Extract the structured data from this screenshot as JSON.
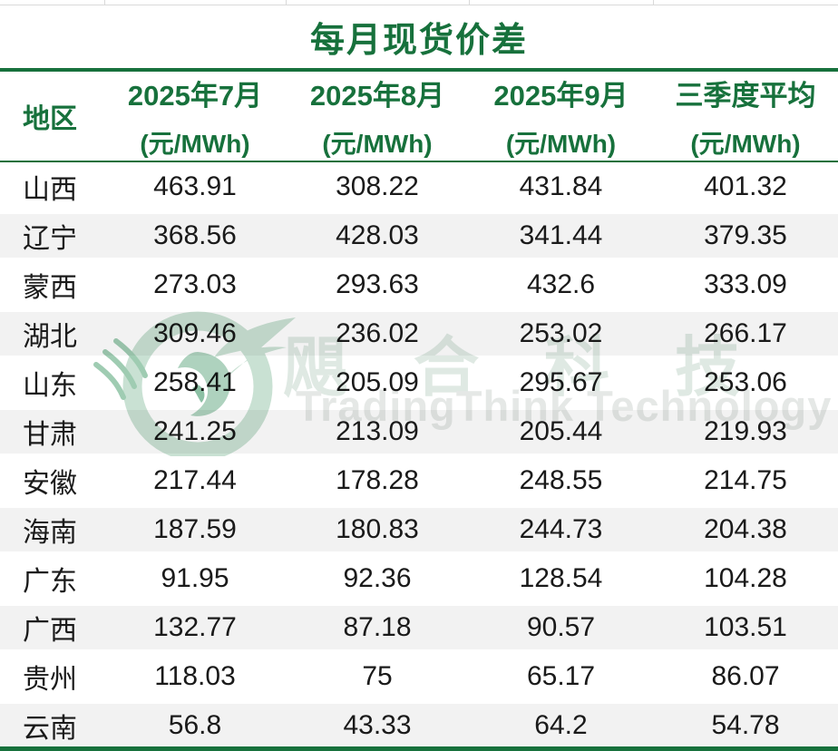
{
  "title": "每月现货价差",
  "table": {
    "region_header": "地区",
    "columns": [
      {
        "label": "2025年7月",
        "unit": "(元/MWh)"
      },
      {
        "label": "2025年8月",
        "unit": "(元/MWh)"
      },
      {
        "label": "2025年9月",
        "unit": "(元/MWh)"
      },
      {
        "label": "三季度平均",
        "unit": "(元/MWh)"
      }
    ],
    "rows": [
      {
        "region": "山西",
        "values": [
          "463.91",
          "308.22",
          "431.84",
          "401.32"
        ]
      },
      {
        "region": "辽宁",
        "values": [
          "368.56",
          "428.03",
          "341.44",
          "379.35"
        ]
      },
      {
        "region": "蒙西",
        "values": [
          "273.03",
          "293.63",
          "432.6",
          "333.09"
        ]
      },
      {
        "region": "湖北",
        "values": [
          "309.46",
          "236.02",
          "253.02",
          "266.17"
        ]
      },
      {
        "region": "山东",
        "values": [
          "258.41",
          "205.09",
          "295.67",
          "253.06"
        ]
      },
      {
        "region": "甘肃",
        "values": [
          "241.25",
          "213.09",
          "205.44",
          "219.93"
        ]
      },
      {
        "region": "安徽",
        "values": [
          "217.44",
          "178.28",
          "248.55",
          "214.75"
        ]
      },
      {
        "region": "海南",
        "values": [
          "187.59",
          "180.83",
          "244.73",
          "204.38"
        ]
      },
      {
        "region": "广东",
        "values": [
          "91.95",
          "92.36",
          "128.54",
          "104.28"
        ]
      },
      {
        "region": "广西",
        "values": [
          "132.77",
          "87.18",
          "90.57",
          "103.51"
        ]
      },
      {
        "region": "贵州",
        "values": [
          "118.03",
          "75",
          "65.17",
          "86.07"
        ]
      },
      {
        "region": "云南",
        "values": [
          "56.8",
          "43.33",
          "64.2",
          "54.78"
        ]
      }
    ]
  },
  "watermark": {
    "logo_icon": "tradingthink-swirl-logo",
    "cn": "飓合科技",
    "en": "TradingThink Technology"
  },
  "colors": {
    "accent_green": "#17713C",
    "row_alt_gray": "#F2F2F2",
    "body_text": "#1A1A1A",
    "gridline_gray": "#D9D9D9",
    "watermark_green_text": "#DFE9E3",
    "watermark_gray_text": "#E5E8E6",
    "watermark_logo_green": "#C9E1D3"
  },
  "chart_data": {
    "type": "table",
    "title": "每月现货价差",
    "row_header": "地区",
    "categories": [
      "2025年7月 (元/MWh)",
      "2025年8月 (元/MWh)",
      "2025年9月 (元/MWh)",
      "三季度平均 (元/MWh)"
    ],
    "series": [
      {
        "name": "山西",
        "values": [
          463.91,
          308.22,
          431.84,
          401.32
        ]
      },
      {
        "name": "辽宁",
        "values": [
          368.56,
          428.03,
          341.44,
          379.35
        ]
      },
      {
        "name": "蒙西",
        "values": [
          273.03,
          293.63,
          432.6,
          333.09
        ]
      },
      {
        "name": "湖北",
        "values": [
          309.46,
          236.02,
          253.02,
          266.17
        ]
      },
      {
        "name": "山东",
        "values": [
          258.41,
          205.09,
          295.67,
          253.06
        ]
      },
      {
        "name": "甘肃",
        "values": [
          241.25,
          213.09,
          205.44,
          219.93
        ]
      },
      {
        "name": "安徽",
        "values": [
          217.44,
          178.28,
          248.55,
          214.75
        ]
      },
      {
        "name": "海南",
        "values": [
          187.59,
          180.83,
          244.73,
          204.38
        ]
      },
      {
        "name": "广东",
        "values": [
          91.95,
          92.36,
          128.54,
          104.28
        ]
      },
      {
        "name": "广西",
        "values": [
          132.77,
          87.18,
          90.57,
          103.51
        ]
      },
      {
        "name": "贵州",
        "values": [
          118.03,
          75,
          65.17,
          86.07
        ]
      },
      {
        "name": "云南",
        "values": [
          56.8,
          43.33,
          64.2,
          54.78
        ]
      }
    ]
  }
}
